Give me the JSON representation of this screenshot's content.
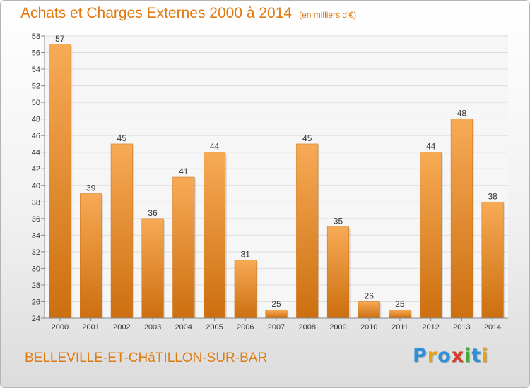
{
  "chart_data": {
    "type": "bar",
    "title": "Achats et Charges Externes 2000 à 2014",
    "unit": "(en milliers d'€)",
    "categories": [
      "2000",
      "2001",
      "2002",
      "2003",
      "2004",
      "2005",
      "2006",
      "2007",
      "2008",
      "2009",
      "2010",
      "2011",
      "2012",
      "2013",
      "2014"
    ],
    "values": [
      57,
      39,
      45,
      36,
      41,
      44,
      31,
      25,
      45,
      35,
      26,
      25,
      44,
      48,
      38
    ],
    "ylim": [
      24,
      58
    ],
    "yticks": [
      24,
      26,
      28,
      30,
      32,
      34,
      36,
      38,
      40,
      42,
      44,
      46,
      48,
      50,
      52,
      54,
      56,
      58
    ],
    "grid": true,
    "xlabel": "",
    "ylabel": "",
    "bar_color": "#ef8a1f",
    "bar_color_light": "#f7aa55",
    "bar_color_dark": "#cc6f10"
  },
  "commune": "BELLEVILLE-ET-CHâTILLON-SUR-BAR",
  "logo": {
    "letters": [
      "P",
      "r",
      "o",
      "x",
      "i",
      "t",
      "i"
    ],
    "colors": [
      "#2f8fd8",
      "#e8a20c",
      "#2f8fd8",
      "#d63a2a",
      "#44a83a",
      "#2f8fd8",
      "#e8a20c"
    ]
  },
  "accent_color": "#e07a10"
}
